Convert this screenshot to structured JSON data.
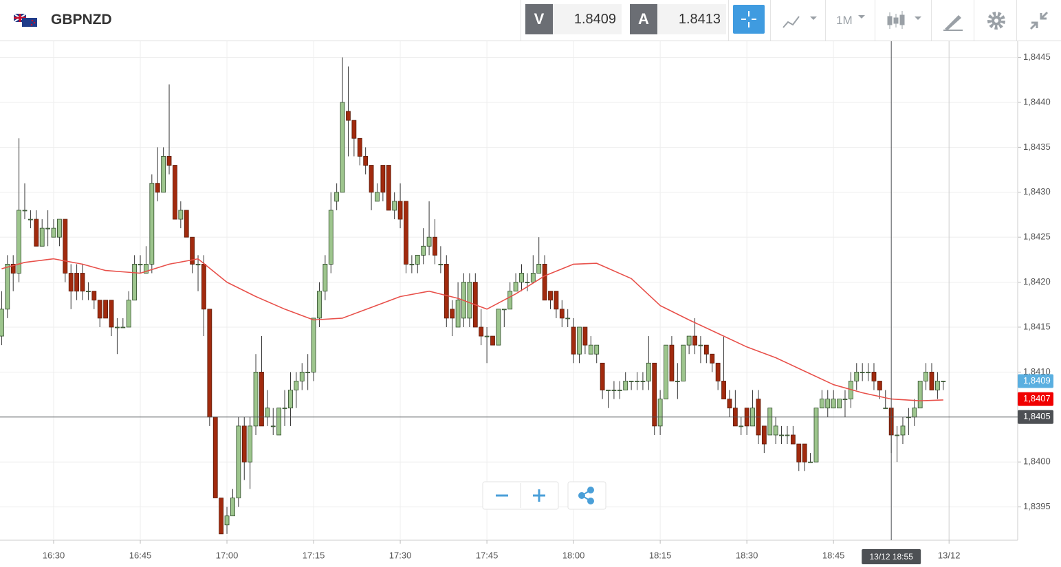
{
  "chart_data": {
    "type": "candlestick",
    "symbol": "GBPNZD",
    "sell": {
      "label": "V",
      "value": 1.8409
    },
    "buy": {
      "label": "A",
      "value": 1.8413
    },
    "timeframe": "1M",
    "x": [
      "16:21",
      "16:22",
      "16:23",
      "16:24",
      "16:25",
      "16:26",
      "16:27",
      "16:28",
      "16:29",
      "16:30",
      "16:31",
      "16:32",
      "16:33",
      "16:34",
      "16:35",
      "16:36",
      "16:37",
      "16:38",
      "16:39",
      "16:40",
      "16:41",
      "16:42",
      "16:43",
      "16:44",
      "16:45",
      "16:46",
      "16:47",
      "16:48",
      "16:49",
      "16:50",
      "16:51",
      "16:52",
      "16:53",
      "16:54",
      "16:55",
      "16:56",
      "16:57",
      "16:58",
      "16:59",
      "17:00",
      "17:01",
      "17:02",
      "17:03",
      "17:04",
      "17:05",
      "17:06",
      "17:07",
      "17:08",
      "17:09",
      "17:10",
      "17:11",
      "17:12",
      "17:13",
      "17:14",
      "17:15",
      "17:16",
      "17:17",
      "17:18",
      "17:19",
      "17:20",
      "17:21",
      "17:22",
      "17:23",
      "17:24",
      "17:25",
      "17:26",
      "17:27",
      "17:28",
      "17:29",
      "17:30",
      "17:31",
      "17:32",
      "17:33",
      "17:34",
      "17:35",
      "17:36",
      "17:37",
      "17:38",
      "17:39",
      "17:40",
      "17:41",
      "17:42",
      "17:43",
      "17:44",
      "17:45",
      "17:46",
      "17:47",
      "17:48",
      "17:49",
      "17:50",
      "17:51",
      "17:52",
      "17:53",
      "17:54",
      "17:55",
      "17:56",
      "17:57",
      "17:58",
      "17:59",
      "18:00",
      "18:01",
      "18:02",
      "18:03",
      "18:04",
      "18:05",
      "18:06",
      "18:07",
      "18:08",
      "18:09",
      "18:10",
      "18:11",
      "18:12",
      "18:13",
      "18:14",
      "18:15",
      "18:16",
      "18:17",
      "18:18",
      "18:19",
      "18:20",
      "18:21",
      "18:22",
      "18:23",
      "18:24",
      "18:25",
      "18:26",
      "18:27",
      "18:28",
      "18:29",
      "18:30",
      "18:31",
      "18:32",
      "18:33",
      "18:34",
      "18:35",
      "18:36",
      "18:37",
      "18:38",
      "18:39",
      "18:40",
      "18:41",
      "18:42",
      "18:43",
      "18:44",
      "18:45",
      "18:46",
      "18:47",
      "18:48",
      "18:49",
      "18:50",
      "18:51",
      "18:52",
      "18:53",
      "18:54",
      "18:55",
      "18:56",
      "18:57",
      "18:58",
      "18:59",
      "19:00",
      "19:01",
      "19:02",
      "19:03",
      "19:04"
    ],
    "open": [
      1.8414,
      1.8417,
      1.8422,
      1.8421,
      1.8428,
      1.8427,
      1.8427,
      1.8424,
      1.8426,
      1.8425,
      1.8425,
      1.8427,
      1.8421,
      1.8421,
      1.8421,
      1.8419,
      1.8419,
      1.8418,
      1.8418,
      1.8418,
      1.8415,
      1.8415,
      1.8415,
      1.8418,
      1.8422,
      1.8421,
      1.8422,
      1.8431,
      1.843,
      1.8434,
      1.8433,
      1.8427,
      1.8428,
      1.8425,
      1.8422,
      1.8422,
      1.8417,
      1.8405,
      1.8396,
      1.8393,
      1.8394,
      1.8396,
      1.8404,
      1.84,
      1.8404,
      1.841,
      1.8405,
      1.8404,
      1.8403,
      1.8406,
      1.8406,
      1.8408,
      1.8409,
      1.841,
      1.841,
      1.8416,
      1.8419,
      1.8422,
      1.8429,
      1.843,
      1.8439,
      1.8438,
      1.8436,
      1.8434,
      1.8433,
      1.8429,
      1.8433,
      1.8433,
      1.8428,
      1.8429,
      1.8429,
      1.8422,
      1.8422,
      1.8423,
      1.8424,
      1.8425,
      1.8422,
      1.8422,
      1.8417,
      1.8415,
      1.8416,
      1.8416,
      1.842,
      1.8415,
      1.8414,
      1.8414,
      1.8413,
      1.8417,
      1.8417,
      1.8419,
      1.842,
      1.842,
      1.842,
      1.8421,
      1.8422,
      1.8419,
      1.8419,
      1.8417,
      1.8416,
      1.8415,
      1.8412,
      1.8415,
      1.8412,
      1.8412,
      1.8411,
      1.8408,
      1.8408,
      1.8408,
      1.8408,
      1.8409,
      1.8409,
      1.8409,
      1.8409,
      1.8411,
      1.8404,
      1.8407,
      1.8413,
      1.8409,
      1.8409,
      1.8413,
      1.8414,
      1.8413,
      1.8413,
      1.8412,
      1.8411,
      1.8409,
      1.8407,
      1.8406,
      1.8404,
      1.8406,
      1.8404,
      1.8407,
      1.8404,
      1.8403,
      1.8403,
      1.8403,
      1.8403,
      1.8403,
      1.8402,
      1.8402,
      1.84,
      1.84,
      1.8406,
      1.8406,
      1.8406,
      1.8406,
      1.8407,
      1.8407,
      1.8409,
      1.841,
      1.841,
      1.841,
      1.8409,
      1.8406,
      1.8406,
      1.8403,
      1.8403,
      1.8405,
      1.8405,
      1.8406,
      1.8409,
      1.841,
      1.8408,
      1.8409
    ],
    "high": [
      1.8419,
      1.8423,
      1.8423,
      1.8436,
      1.8431,
      1.8428,
      1.8428,
      1.8427,
      1.8428,
      1.8427,
      1.8427,
      1.8427,
      1.8422,
      1.8422,
      1.8422,
      1.842,
      1.8419,
      1.8418,
      1.8418,
      1.8418,
      1.8416,
      1.8416,
      1.8419,
      1.8423,
      1.8423,
      1.8424,
      1.8432,
      1.8435,
      1.8435,
      1.8442,
      1.8433,
      1.8429,
      1.8428,
      1.8425,
      1.8423,
      1.8423,
      1.8417,
      1.8405,
      1.8396,
      1.8395,
      1.8397,
      1.8405,
      1.8405,
      1.8405,
      1.8412,
      1.8414,
      1.8408,
      1.8406,
      1.8406,
      1.8408,
      1.841,
      1.841,
      1.8411,
      1.8412,
      1.8416,
      1.842,
      1.8423,
      1.843,
      1.8431,
      1.8445,
      1.8444,
      1.8438,
      1.8436,
      1.8435,
      1.8433,
      1.8431,
      1.8433,
      1.8433,
      1.843,
      1.8431,
      1.8429,
      1.8423,
      1.8423,
      1.8426,
      1.8429,
      1.8427,
      1.8424,
      1.8423,
      1.8418,
      1.842,
      1.8421,
      1.8421,
      1.8421,
      1.8417,
      1.8415,
      1.8414,
      1.8417,
      1.8417,
      1.842,
      1.8421,
      1.8422,
      1.8421,
      1.8423,
      1.8425,
      1.8423,
      1.8419,
      1.8419,
      1.8418,
      1.8417,
      1.8416,
      1.8415,
      1.8415,
      1.8414,
      1.8413,
      1.8411,
      1.8408,
      1.8409,
      1.8409,
      1.841,
      1.8409,
      1.841,
      1.841,
      1.8414,
      1.8411,
      1.8408,
      1.8413,
      1.8414,
      1.8411,
      1.8413,
      1.8414,
      1.8416,
      1.8414,
      1.8413,
      1.8412,
      1.8411,
      1.8414,
      1.8408,
      1.8408,
      1.8405,
      1.8406,
      1.8408,
      1.8408,
      1.8404,
      1.8406,
      1.8405,
      1.8404,
      1.8404,
      1.8404,
      1.8402,
      1.8402,
      1.8401,
      1.8406,
      1.8408,
      1.8408,
      1.8408,
      1.8407,
      1.8408,
      1.841,
      1.8411,
      1.8411,
      1.8411,
      1.8411,
      1.8409,
      1.8408,
      1.8406,
      1.8404,
      1.8405,
      1.8406,
      1.8407,
      1.8409,
      1.8411,
      1.8411,
      1.841,
      1.8409
    ],
    "low": [
      1.8413,
      1.8416,
      1.8419,
      1.842,
      1.8427,
      1.8426,
      1.8424,
      1.8424,
      1.8424,
      1.8425,
      1.8424,
      1.842,
      1.8417,
      1.8418,
      1.8418,
      1.8418,
      1.8417,
      1.8415,
      1.8416,
      1.8414,
      1.8412,
      1.8415,
      1.8415,
      1.8418,
      1.8421,
      1.8421,
      1.8421,
      1.8429,
      1.843,
      1.8432,
      1.8427,
      1.8426,
      1.8425,
      1.8421,
      1.8419,
      1.8414,
      1.8404,
      1.8396,
      1.8392,
      1.8392,
      1.8394,
      1.8395,
      1.8398,
      1.8397,
      1.8403,
      1.8404,
      1.8404,
      1.8403,
      1.8403,
      1.8404,
      1.8404,
      1.8406,
      1.8408,
      1.8408,
      1.8409,
      1.8415,
      1.8418,
      1.8421,
      1.8428,
      1.843,
      1.8434,
      1.8434,
      1.8433,
      1.8432,
      1.8428,
      1.8429,
      1.8429,
      1.8428,
      1.8427,
      1.8426,
      1.8421,
      1.8421,
      1.8421,
      1.8422,
      1.8423,
      1.8422,
      1.8421,
      1.8415,
      1.8414,
      1.8415,
      1.8415,
      1.8415,
      1.8415,
      1.8413,
      1.8411,
      1.8413,
      1.8413,
      1.8415,
      1.8417,
      1.8419,
      1.8419,
      1.8419,
      1.842,
      1.8421,
      1.8418,
      1.8417,
      1.8416,
      1.8415,
      1.8415,
      1.8411,
      1.8411,
      1.8412,
      1.8412,
      1.8411,
      1.8407,
      1.8406,
      1.8407,
      1.8407,
      1.8408,
      1.8408,
      1.8408,
      1.8408,
      1.8408,
      1.8403,
      1.8403,
      1.8407,
      1.8409,
      1.8407,
      1.8409,
      1.8412,
      1.8412,
      1.8411,
      1.8411,
      1.841,
      1.8408,
      1.8407,
      1.8405,
      1.8404,
      1.8403,
      1.8403,
      1.8404,
      1.8402,
      1.8401,
      1.8403,
      1.8402,
      1.8402,
      1.8402,
      1.8402,
      1.8399,
      1.8399,
      1.84,
      1.84,
      1.8406,
      1.8405,
      1.8406,
      1.8406,
      1.8405,
      1.8406,
      1.8408,
      1.8409,
      1.8409,
      1.8408,
      1.8407,
      1.8406,
      1.8401,
      1.84,
      1.8402,
      1.8403,
      1.8404,
      1.8406,
      1.8408,
      1.8408,
      1.8407,
      1.8408
    ],
    "close": [
      1.8417,
      1.8422,
      1.8421,
      1.8428,
      1.8428,
      1.8427,
      1.8424,
      1.8426,
      1.8426,
      1.8426,
      1.8427,
      1.8421,
      1.8419,
      1.8419,
      1.8419,
      1.8419,
      1.8418,
      1.8416,
      1.8416,
      1.8415,
      1.8415,
      1.8415,
      1.8418,
      1.8422,
      1.8422,
      1.8422,
      1.8431,
      1.843,
      1.8434,
      1.8433,
      1.8427,
      1.8428,
      1.8425,
      1.8422,
      1.8422,
      1.8417,
      1.8405,
      1.8396,
      1.8392,
      1.8394,
      1.8396,
      1.8404,
      1.84,
      1.8404,
      1.841,
      1.8404,
      1.8406,
      1.8404,
      1.8406,
      1.8406,
      1.8408,
      1.8409,
      1.841,
      1.841,
      1.8416,
      1.8419,
      1.8422,
      1.8428,
      1.843,
      1.844,
      1.8438,
      1.8436,
      1.8434,
      1.8433,
      1.843,
      1.843,
      1.843,
      1.8428,
      1.8429,
      1.8427,
      1.8422,
      1.8422,
      1.8423,
      1.8424,
      1.8425,
      1.8423,
      1.8422,
      1.8416,
      1.8416,
      1.8418,
      1.842,
      1.842,
      1.8415,
      1.8414,
      1.8414,
      1.8413,
      1.8417,
      1.8417,
      1.8419,
      1.842,
      1.8421,
      1.842,
      1.8421,
      1.8422,
      1.8418,
      1.8418,
      1.8417,
      1.8416,
      1.8416,
      1.8412,
      1.8415,
      1.8413,
      1.8413,
      1.8413,
      1.8408,
      1.8408,
      1.8408,
      1.8408,
      1.8409,
      1.8409,
      1.8409,
      1.8409,
      1.8411,
      1.8404,
      1.8407,
      1.8413,
      1.8409,
      1.8409,
      1.8413,
      1.8414,
      1.8413,
      1.8413,
      1.8412,
      1.8411,
      1.8409,
      1.8407,
      1.8406,
      1.8404,
      1.8404,
      1.8404,
      1.8406,
      1.8403,
      1.8402,
      1.8406,
      1.8404,
      1.8403,
      1.8403,
      1.8402,
      1.84,
      1.84,
      1.84,
      1.8406,
      1.8407,
      1.8407,
      1.8407,
      1.8407,
      1.8407,
      1.8409,
      1.841,
      1.841,
      1.841,
      1.8409,
      1.8408,
      1.8406,
      1.8403,
      1.8403,
      1.8404,
      1.8405,
      1.8406,
      1.8409,
      1.841,
      1.8408,
      1.8409,
      1.8409
    ],
    "up_color": "#9dc58d",
    "down_color": "#a12a0e",
    "overlay": {
      "color": "#e8504a",
      "x": [
        "16:21",
        "16:25",
        "16:30",
        "16:35",
        "16:39",
        "16:45",
        "16:50",
        "16:55",
        "17:00",
        "17:05",
        "17:10",
        "17:15",
        "17:20",
        "17:25",
        "17:30",
        "17:35",
        "17:40",
        "17:45",
        "17:50",
        "17:55",
        "18:00",
        "18:04",
        "18:10",
        "18:15",
        "18:20",
        "18:25",
        "18:30",
        "18:35",
        "18:40",
        "18:45",
        "18:50",
        "18:55",
        "19:00",
        "19:04"
      ],
      "values": [
        1.84215,
        1.84222,
        1.84226,
        1.8422,
        1.84213,
        1.8421,
        1.8422,
        1.84226,
        1.842,
        1.84184,
        1.8417,
        1.84158,
        1.8416,
        1.84172,
        1.84184,
        1.8419,
        1.84182,
        1.8417,
        1.84187,
        1.84207,
        1.8422,
        1.84221,
        1.84204,
        1.84174,
        1.84158,
        1.84143,
        1.84128,
        1.84116,
        1.84101,
        1.84086,
        1.84077,
        1.8407,
        1.84068,
        1.84069
      ]
    },
    "xlim": [
      "16:20",
      "19:17"
    ],
    "xticks": [
      "16:30",
      "16:45",
      "17:00",
      "17:15",
      "17:30",
      "17:45",
      "18:00",
      "18:15",
      "18:30",
      "18:45",
      {
        "value": "19:05",
        "label": "13/12"
      }
    ],
    "ylim": [
      1.83913,
      1.84468
    ],
    "yticks": [
      {
        "value": 1.8395,
        "label": "1,8395"
      },
      {
        "value": 1.84,
        "label": "1,8400"
      },
      {
        "value": 1.8405,
        "label": "1,8405"
      },
      {
        "value": 1.841,
        "label": "1,8410"
      },
      {
        "value": 1.8415,
        "label": "1,8415"
      },
      {
        "value": 1.842,
        "label": "1,8420"
      },
      {
        "value": 1.8425,
        "label": "1,8425"
      },
      {
        "value": 1.843,
        "label": "1,8430"
      },
      {
        "value": 1.8435,
        "label": "1,8435"
      },
      {
        "value": 1.844,
        "label": "1,8440"
      },
      {
        "value": 1.8445,
        "label": "1,8445"
      }
    ],
    "grid": true,
    "markers": [
      {
        "value": 1.8409,
        "label": "1,8409",
        "color": "#5aafe0"
      },
      {
        "value": 1.8407,
        "label": "1,8407",
        "color": "#f00000"
      }
    ],
    "crosshair": {
      "x": {
        "value": "18:55",
        "label": "13/12 18:55"
      },
      "y": {
        "value": 1.8405,
        "label": "1,8405"
      },
      "color": "#4d5054"
    }
  }
}
